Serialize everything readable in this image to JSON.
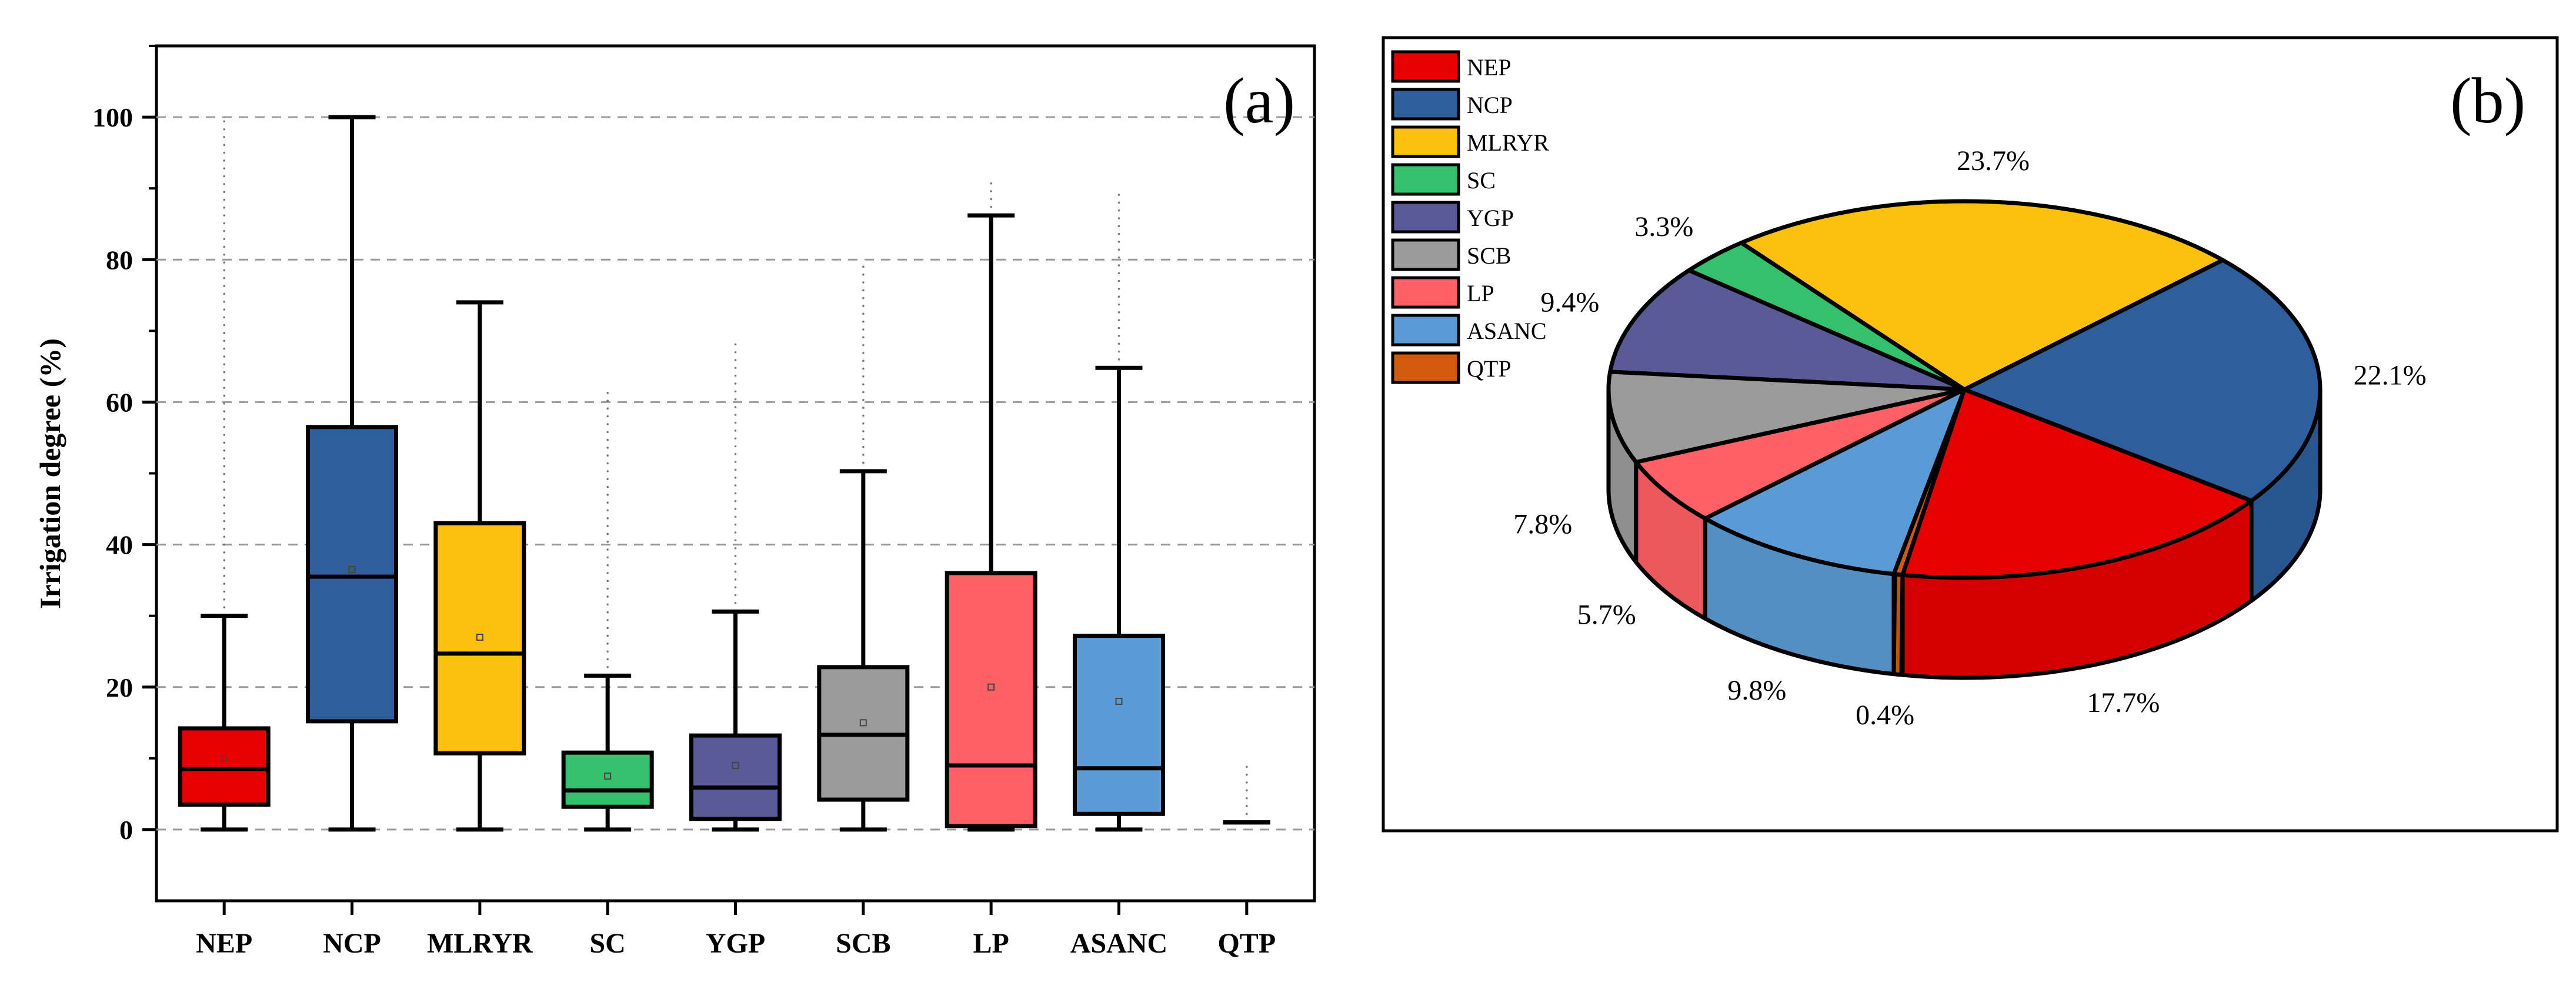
{
  "chart_data": [
    {
      "type": "box",
      "panel_label": "(a)",
      "ylabel": "Irrigation degree (%)",
      "ylim": [
        -10,
        110
      ],
      "yticks": [
        0,
        20,
        40,
        60,
        80,
        100
      ],
      "grid": "horizontal-dashed",
      "categories": [
        "NEP",
        "NCP",
        "MLRYR",
        "SC",
        "YGP",
        "SCB",
        "LP",
        "ASANC",
        "QTP"
      ],
      "boxes": [
        {
          "name": "NEP",
          "color": "#E60000",
          "whisker_low": 0,
          "q1": 3.5,
          "median": 8.5,
          "q3": 14.2,
          "whisker_high": 30,
          "mean": 10,
          "outliers_max": 100
        },
        {
          "name": "NCP",
          "color": "#2E5E9B",
          "whisker_low": 0,
          "q1": 15.2,
          "median": 35.5,
          "q3": 56.5,
          "whisker_high": 100,
          "mean": 36.5,
          "outliers_max": null
        },
        {
          "name": "MLRYR",
          "color": "#FCC10F",
          "whisker_low": 0,
          "q1": 10.7,
          "median": 24.7,
          "q3": 43,
          "whisker_high": 74,
          "mean": 27,
          "outliers_max": null
        },
        {
          "name": "SC",
          "color": "#33C16E",
          "whisker_low": 0,
          "q1": 3.2,
          "median": 5.5,
          "q3": 10.8,
          "whisker_high": 21.6,
          "mean": 7.5,
          "outliers_max": 62
        },
        {
          "name": "YGP",
          "color": "#5B5A98",
          "whisker_low": 0,
          "q1": 1.5,
          "median": 5.9,
          "q3": 13.2,
          "whisker_high": 30.6,
          "mean": 9,
          "outliers_max": 69
        },
        {
          "name": "SCB",
          "color": "#9B9B9B",
          "whisker_low": 0,
          "q1": 4.2,
          "median": 13.3,
          "q3": 22.8,
          "whisker_high": 50.3,
          "mean": 15,
          "outliers_max": 80
        },
        {
          "name": "LP",
          "color": "#FF6166",
          "whisker_low": 0,
          "q1": 0.5,
          "median": 9,
          "q3": 36,
          "whisker_high": 86.2,
          "mean": 20,
          "outliers_max": 91
        },
        {
          "name": "ASANC",
          "color": "#5B9BD5",
          "whisker_low": 0,
          "q1": 2.2,
          "median": 8.6,
          "q3": 27.2,
          "whisker_high": 64.8,
          "mean": 18,
          "outliers_max": 90
        },
        {
          "name": "QTP",
          "color": "#D15A0F",
          "whisker_low": 1,
          "q1": 1,
          "median": 1,
          "q3": 1,
          "whisker_high": 1,
          "mean": 1,
          "outliers_max": 9
        }
      ]
    },
    {
      "type": "pie",
      "panel_label": "(b)",
      "style": "3d",
      "legend": {
        "placement": "top-left",
        "entries": [
          "NEP",
          "NCP",
          "MLRYR",
          "SC",
          "YGP",
          "SCB",
          "LP",
          "ASANC",
          "QTP"
        ]
      },
      "slices": [
        {
          "name": "NEP",
          "value": 17.7,
          "label": "17.7%",
          "color": "#E60000"
        },
        {
          "name": "NCP",
          "value": 22.1,
          "label": "22.1%",
          "color": "#2E5E9B"
        },
        {
          "name": "MLRYR",
          "value": 23.7,
          "label": "23.7%",
          "color": "#FCC10F"
        },
        {
          "name": "SC",
          "value": 3.3,
          "label": "3.3%",
          "color": "#33C16E"
        },
        {
          "name": "YGP",
          "value": 9.4,
          "label": "9.4%",
          "color": "#5B5A98"
        },
        {
          "name": "SCB",
          "value": 7.8,
          "label": "7.8%",
          "color": "#9B9B9B"
        },
        {
          "name": "LP",
          "value": 5.7,
          "label": "5.7%",
          "color": "#FF6166"
        },
        {
          "name": "ASANC",
          "value": 9.8,
          "label": "9.8%",
          "color": "#5B9BD5"
        },
        {
          "name": "QTP",
          "value": 0.4,
          "label": "0.4%",
          "color": "#D15A0F"
        }
      ]
    }
  ]
}
